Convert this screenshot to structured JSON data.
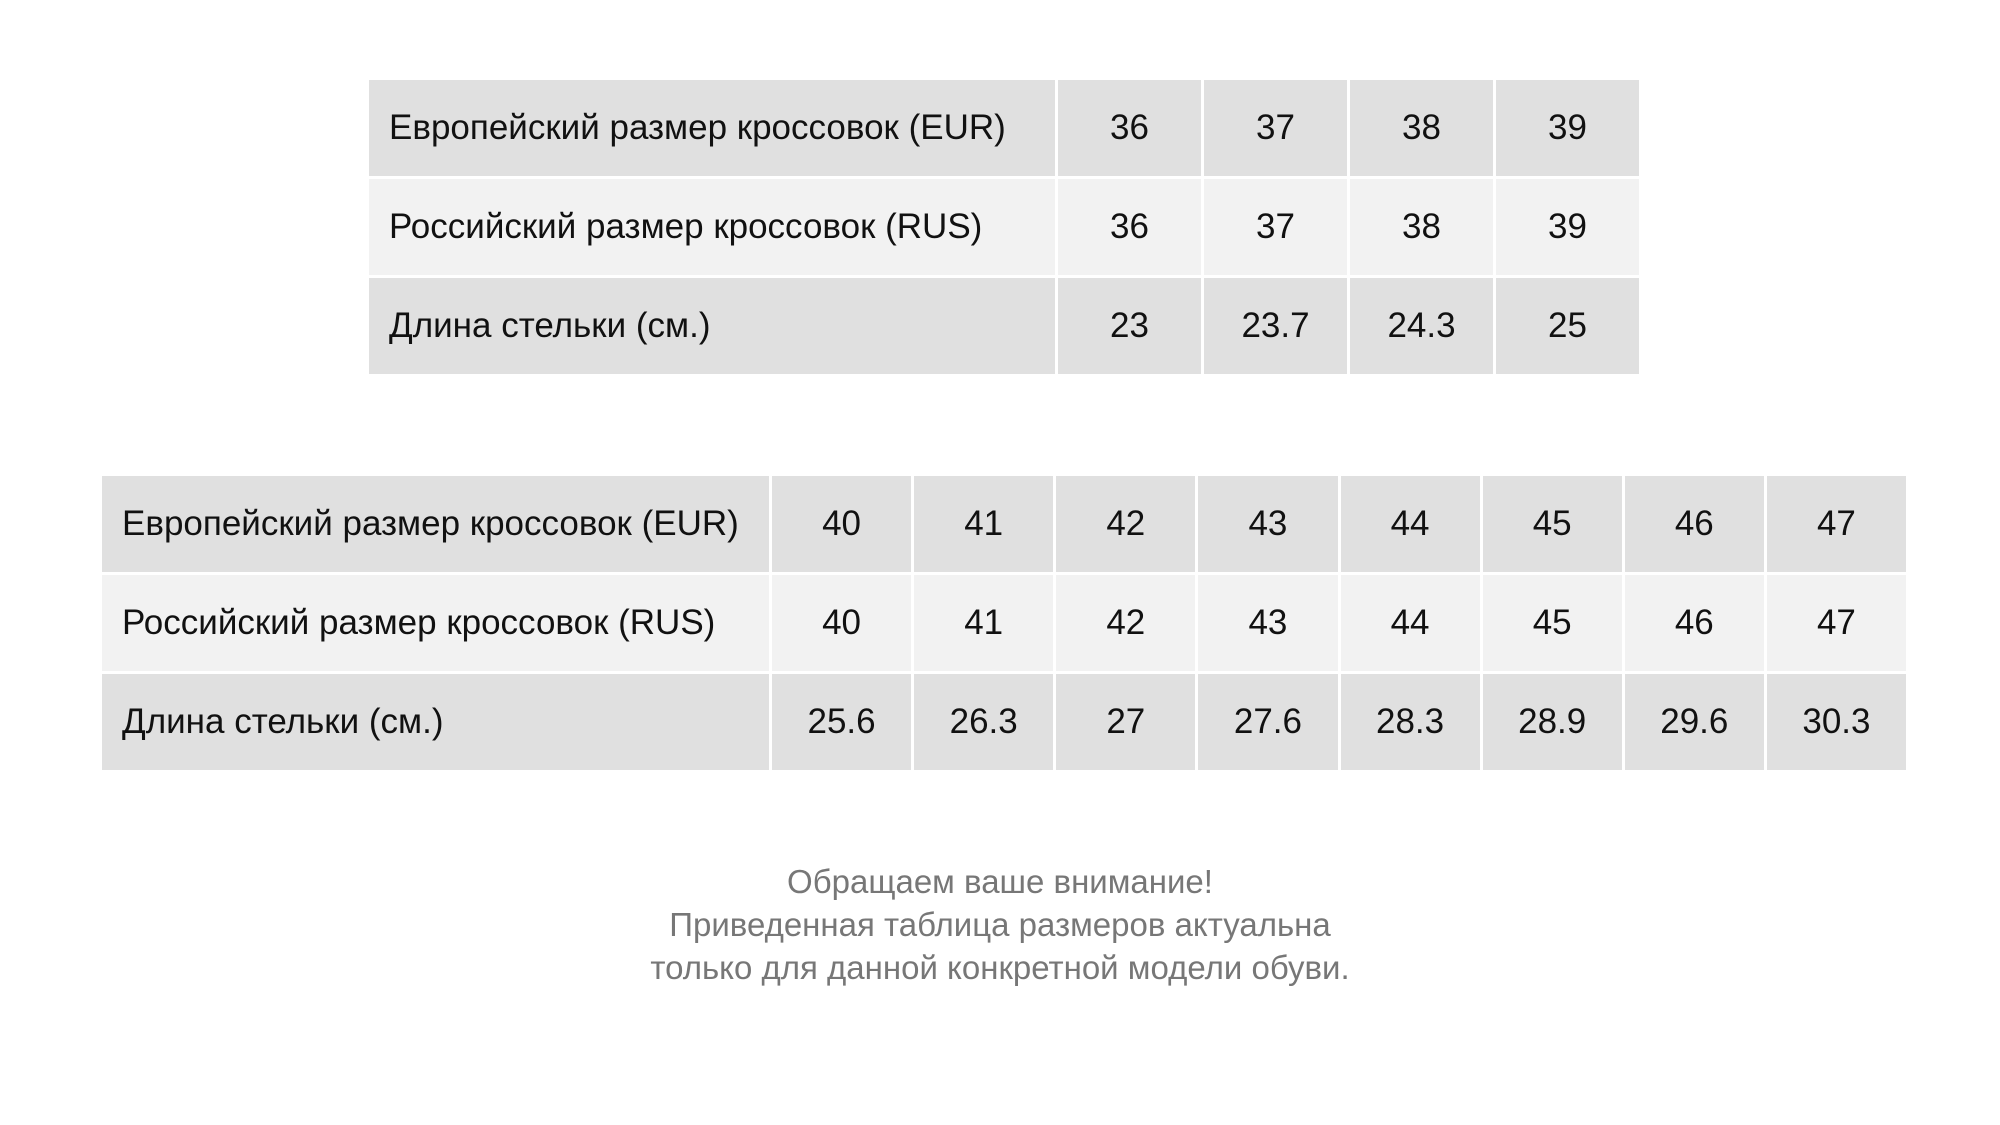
{
  "tables": [
    {
      "rows": [
        {
          "label": "Европейский размер кроссовок (EUR)",
          "cells": [
            36,
            37,
            38,
            39
          ]
        },
        {
          "label": "Российский размер кроссовок (RUS)",
          "cells": [
            36,
            37,
            38,
            39
          ]
        },
        {
          "label": "Длина стельки (см.)",
          "cells": [
            23,
            23.7,
            24.3,
            25
          ]
        }
      ]
    },
    {
      "rows": [
        {
          "label": "Европейский размер кроссовок (EUR)",
          "cells": [
            40,
            41,
            42,
            43,
            44,
            45,
            46,
            47
          ]
        },
        {
          "label": "Российский размер кроссовок (RUS)",
          "cells": [
            40,
            41,
            42,
            43,
            44,
            45,
            46,
            47
          ]
        },
        {
          "label": "Длина стельки (см.)",
          "cells": [
            25.6,
            26.3,
            27,
            27.6,
            28.3,
            28.9,
            29.6,
            30.3
          ]
        }
      ]
    }
  ],
  "note": {
    "lines": [
      "Обращаем ваше внимание!",
      "Приведенная таблица размеров актуальна",
      "только для данной конкретной модели обуви."
    ]
  }
}
